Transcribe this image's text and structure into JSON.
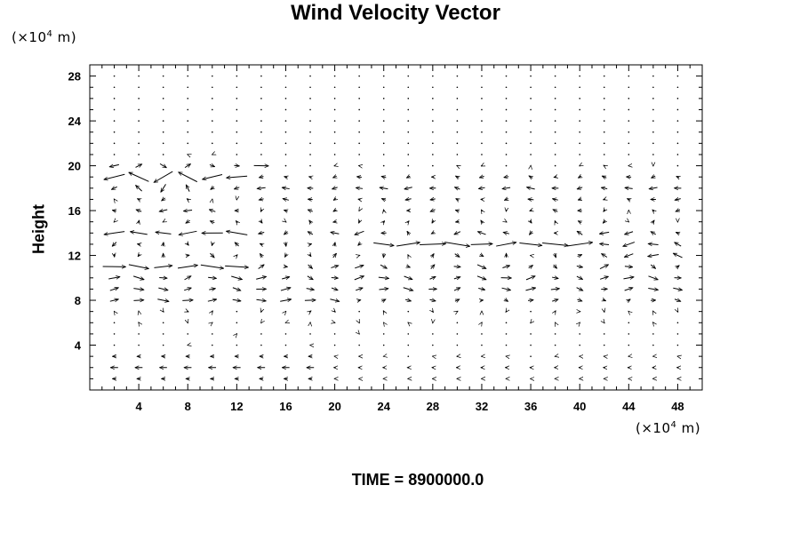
{
  "title": "Wind Velocity Vector",
  "y_unit": {
    "pre": "(×10",
    "exp": "4",
    "post": " m)"
  },
  "x_unit": {
    "pre": "(×10",
    "exp": "4",
    "post": " m)"
  },
  "time_label": "TIME = 8900000.0",
  "chart_data": {
    "type": "vector-field",
    "title": "Wind Velocity Vector",
    "xlabel": "",
    "ylabel": "Height",
    "x_unit": "×10^4 m",
    "y_unit": "×10^4 m",
    "xlim": [
      0,
      50
    ],
    "ylim": [
      0,
      29
    ],
    "xticks": [
      4,
      8,
      12,
      16,
      20,
      24,
      28,
      32,
      36,
      40,
      44,
      48
    ],
    "yticks": [
      4,
      8,
      12,
      16,
      20,
      24,
      28
    ],
    "grid": false,
    "grid_dx": 2,
    "grid_dy": 1,
    "annotation": "TIME = 8900000.0",
    "vector_field_summary": [
      {
        "region": "y 19-21, x 0-14",
        "direction": "west / southwest",
        "magnitude": "strong"
      },
      {
        "region": "y 20, x 4-14",
        "direction": "east",
        "magnitude": "moderate"
      },
      {
        "region": "y 17-19, x 14-50",
        "direction": "west",
        "magnitude": "moderate"
      },
      {
        "region": "y 14, x 0-12",
        "direction": "west",
        "magnitude": "strong"
      },
      {
        "region": "y 13, x 24-40",
        "direction": "east",
        "magnitude": "strong"
      },
      {
        "region": "y 12-13, x 40-50",
        "direction": "west",
        "magnitude": "moderate"
      },
      {
        "region": "y 11, x 0-14",
        "direction": "east",
        "magnitude": "strong"
      },
      {
        "region": "y 9-10, x 0-50",
        "direction": "east",
        "magnitude": "moderate"
      },
      {
        "region": "y 8, x 0-20",
        "direction": "east",
        "magnitude": "moderate"
      },
      {
        "region": "y 1-3, x 0-20",
        "direction": "west",
        "magnitude": "moderate"
      },
      {
        "region": "y 22-29, all x",
        "direction": "calm",
        "magnitude": "near zero"
      }
    ]
  }
}
